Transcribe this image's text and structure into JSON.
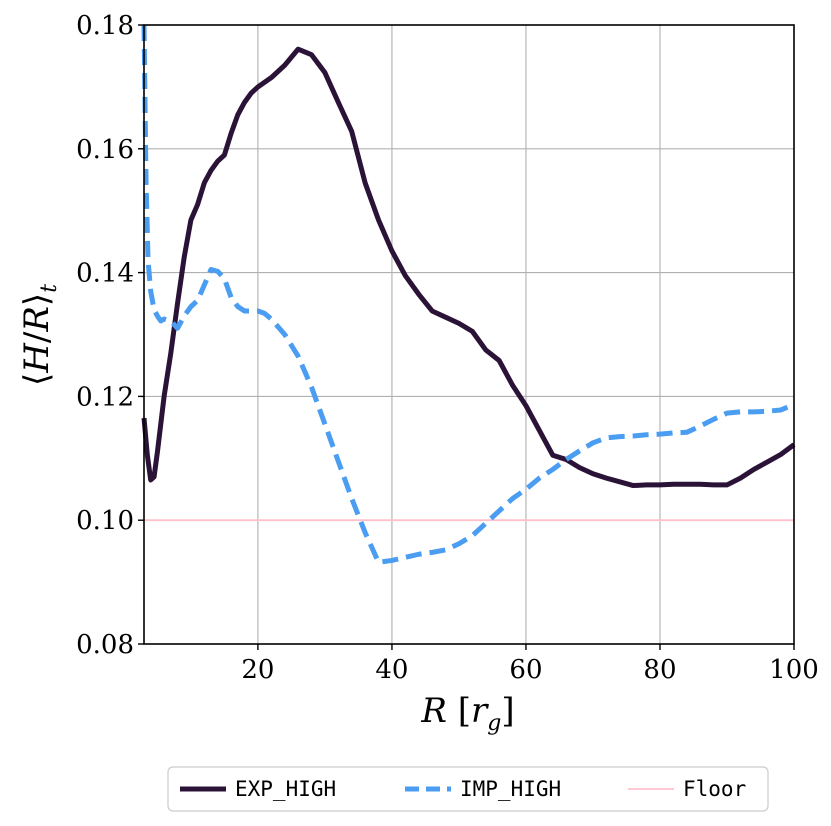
{
  "chart_data": {
    "type": "line",
    "xlabel": "R [r_g]",
    "ylabel": "⟨H/R⟩_t",
    "xlim": [
      3,
      100
    ],
    "ylim": [
      0.08,
      0.18
    ],
    "xticks": [
      20,
      40,
      60,
      80,
      100
    ],
    "yticks": [
      0.08,
      0.1,
      0.12,
      0.14,
      0.16,
      0.18
    ],
    "grid": true,
    "legend_placement": "bottom-center-outside",
    "series": [
      {
        "name": "EXP_HIGH",
        "color": "#2b1338",
        "style": "solid",
        "x": [
          3,
          3.5,
          4,
          4.5,
          5,
          6,
          7,
          8,
          9,
          10,
          11,
          12,
          13,
          14,
          15,
          16,
          17,
          18,
          19,
          20,
          22,
          24,
          26,
          28,
          30,
          32,
          34,
          36,
          38,
          40,
          42,
          44,
          46,
          48,
          50,
          52,
          54,
          56,
          58,
          60,
          62,
          64,
          66,
          68,
          70,
          72,
          74,
          76,
          78,
          80,
          82,
          84,
          86,
          88,
          90,
          92,
          94,
          96,
          98,
          100
        ],
        "y": [
          0.1165,
          0.1105,
          0.1065,
          0.107,
          0.111,
          0.12,
          0.127,
          0.135,
          0.1425,
          0.1485,
          0.151,
          0.1545,
          0.1565,
          0.158,
          0.159,
          0.1625,
          0.1655,
          0.1675,
          0.169,
          0.17,
          0.1715,
          0.1735,
          0.1761,
          0.1752,
          0.1723,
          0.1675,
          0.1628,
          0.1545,
          0.1485,
          0.1435,
          0.1395,
          0.1365,
          0.1338,
          0.1328,
          0.1318,
          0.1305,
          0.1275,
          0.1258,
          0.1218,
          0.1185,
          0.1145,
          0.1105,
          0.1098,
          0.1085,
          0.1075,
          0.1068,
          0.1062,
          0.1056,
          0.1057,
          0.1057,
          0.1058,
          0.1058,
          0.1058,
          0.1057,
          0.1057,
          0.1068,
          0.1082,
          0.1094,
          0.1106,
          0.1122
        ]
      },
      {
        "name": "IMP_HIGH",
        "color": "#4a9df0",
        "style": "dashed",
        "x": [
          3,
          3.3,
          3.6,
          4,
          4.5,
          5,
          5.5,
          6,
          7,
          8,
          9,
          10,
          11,
          12,
          13,
          14,
          15,
          16,
          17,
          18,
          19,
          20,
          21,
          22,
          24,
          26,
          28,
          30,
          32,
          34,
          36,
          38,
          40,
          42,
          44,
          46,
          48,
          50,
          52,
          54,
          56,
          58,
          60,
          62,
          64,
          66,
          68,
          70,
          72,
          74,
          76,
          78,
          80,
          82,
          84,
          86,
          88,
          90,
          92,
          94,
          96,
          98,
          100
        ],
        "y": [
          0.18,
          0.155,
          0.142,
          0.137,
          0.134,
          0.133,
          0.1322,
          0.1325,
          0.1322,
          0.131,
          0.133,
          0.1345,
          0.1355,
          0.138,
          0.1405,
          0.1402,
          0.139,
          0.136,
          0.1345,
          0.1338,
          0.1338,
          0.1338,
          0.1334,
          0.1325,
          0.13,
          0.1265,
          0.1215,
          0.1155,
          0.1095,
          0.1035,
          0.098,
          0.0932,
          0.0935,
          0.094,
          0.0945,
          0.0948,
          0.0952,
          0.0962,
          0.0975,
          0.0995,
          0.1015,
          0.1035,
          0.105,
          0.1068,
          0.1082,
          0.1098,
          0.1112,
          0.1125,
          0.1133,
          0.1135,
          0.1136,
          0.1138,
          0.1139,
          0.1141,
          0.1142,
          0.1152,
          0.1163,
          0.1173,
          0.1175,
          0.1175,
          0.1176,
          0.1178,
          0.1187
        ]
      },
      {
        "name": "Floor",
        "color": "#ffc0cb",
        "style": "solid",
        "x": [
          3,
          100
        ],
        "y": [
          0.1,
          0.1
        ]
      }
    ]
  }
}
